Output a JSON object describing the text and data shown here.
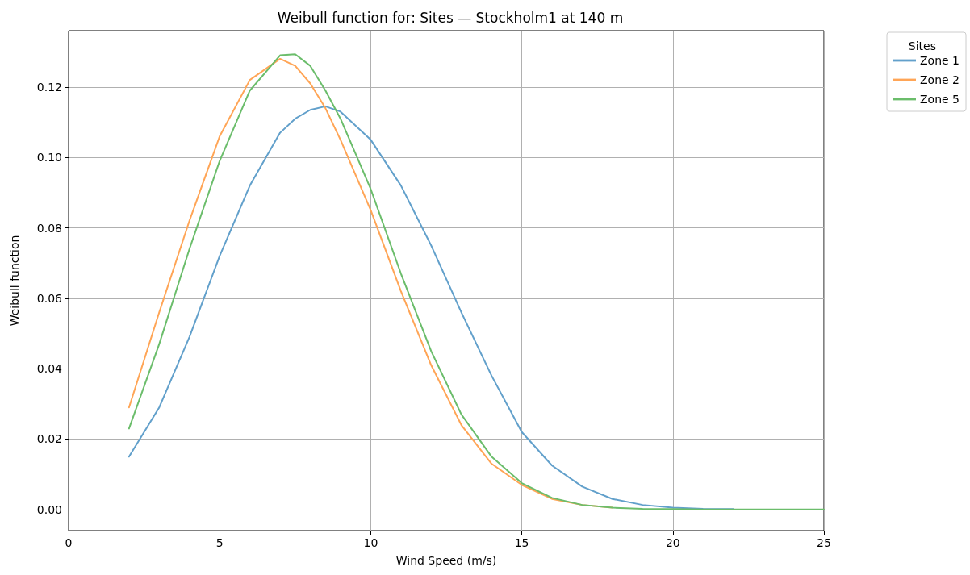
{
  "chart_data": {
    "type": "line",
    "title": "Weibull function for: Sites — Stockholm1 at 140 m",
    "xlabel": "Wind Speed (m/s)",
    "ylabel": "Weibull function",
    "legend_title": "Sites",
    "legend": "top right",
    "grid": true,
    "marker": "none",
    "line_style": "solid",
    "x": [
      2,
      3,
      4,
      5,
      6,
      7,
      7.5,
      8,
      8.5,
      9,
      10,
      11,
      12,
      13,
      14,
      15,
      16,
      17,
      18,
      19,
      20,
      21,
      22,
      23,
      24,
      25
    ],
    "xlim": [
      0,
      25
    ],
    "xticks": [
      0,
      5,
      10,
      15,
      20,
      25
    ],
    "ylim": [
      -0.006,
      0.136
    ],
    "yticks": [
      {
        "value": 0,
        "label": "0.00"
      },
      {
        "value": 0.02,
        "label": "0.02"
      },
      {
        "value": 0.04,
        "label": "0.04"
      },
      {
        "value": 0.06,
        "label": "0.06"
      },
      {
        "value": 0.08,
        "label": "0.08"
      },
      {
        "value": 0.1,
        "label": "0.10"
      },
      {
        "value": 0.12,
        "label": "0.12"
      }
    ],
    "series": [
      {
        "name": "Zone 1",
        "color": "#62a0cb",
        "values": [
          0.015,
          0.029,
          0.049,
          0.072,
          0.092,
          0.107,
          0.111,
          0.1135,
          0.1145,
          0.113,
          0.105,
          0.092,
          0.075,
          0.056,
          0.038,
          0.022,
          0.0125,
          0.0065,
          0.003,
          0.0013,
          0.0005,
          0.0002,
          0.0001,
          null,
          null,
          null
        ]
      },
      {
        "name": "Zone 2",
        "color": "#ffa556",
        "values": [
          0.029,
          0.056,
          0.082,
          0.106,
          0.122,
          0.128,
          0.126,
          0.121,
          0.114,
          0.105,
          0.085,
          0.062,
          0.041,
          0.024,
          0.013,
          0.007,
          0.003,
          0.0013,
          0.0005,
          null,
          null,
          null,
          null,
          null,
          null,
          null
        ]
      },
      {
        "name": "Zone 5",
        "color": "#6bbd6b",
        "values": [
          0.023,
          0.047,
          0.074,
          0.099,
          0.119,
          0.129,
          0.1293,
          0.126,
          0.119,
          0.111,
          0.091,
          0.067,
          0.045,
          0.027,
          0.015,
          0.0075,
          0.0033,
          0.0013,
          0.0005,
          0.0002,
          0.0001,
          0,
          0,
          0,
          0,
          0
        ]
      }
    ]
  }
}
